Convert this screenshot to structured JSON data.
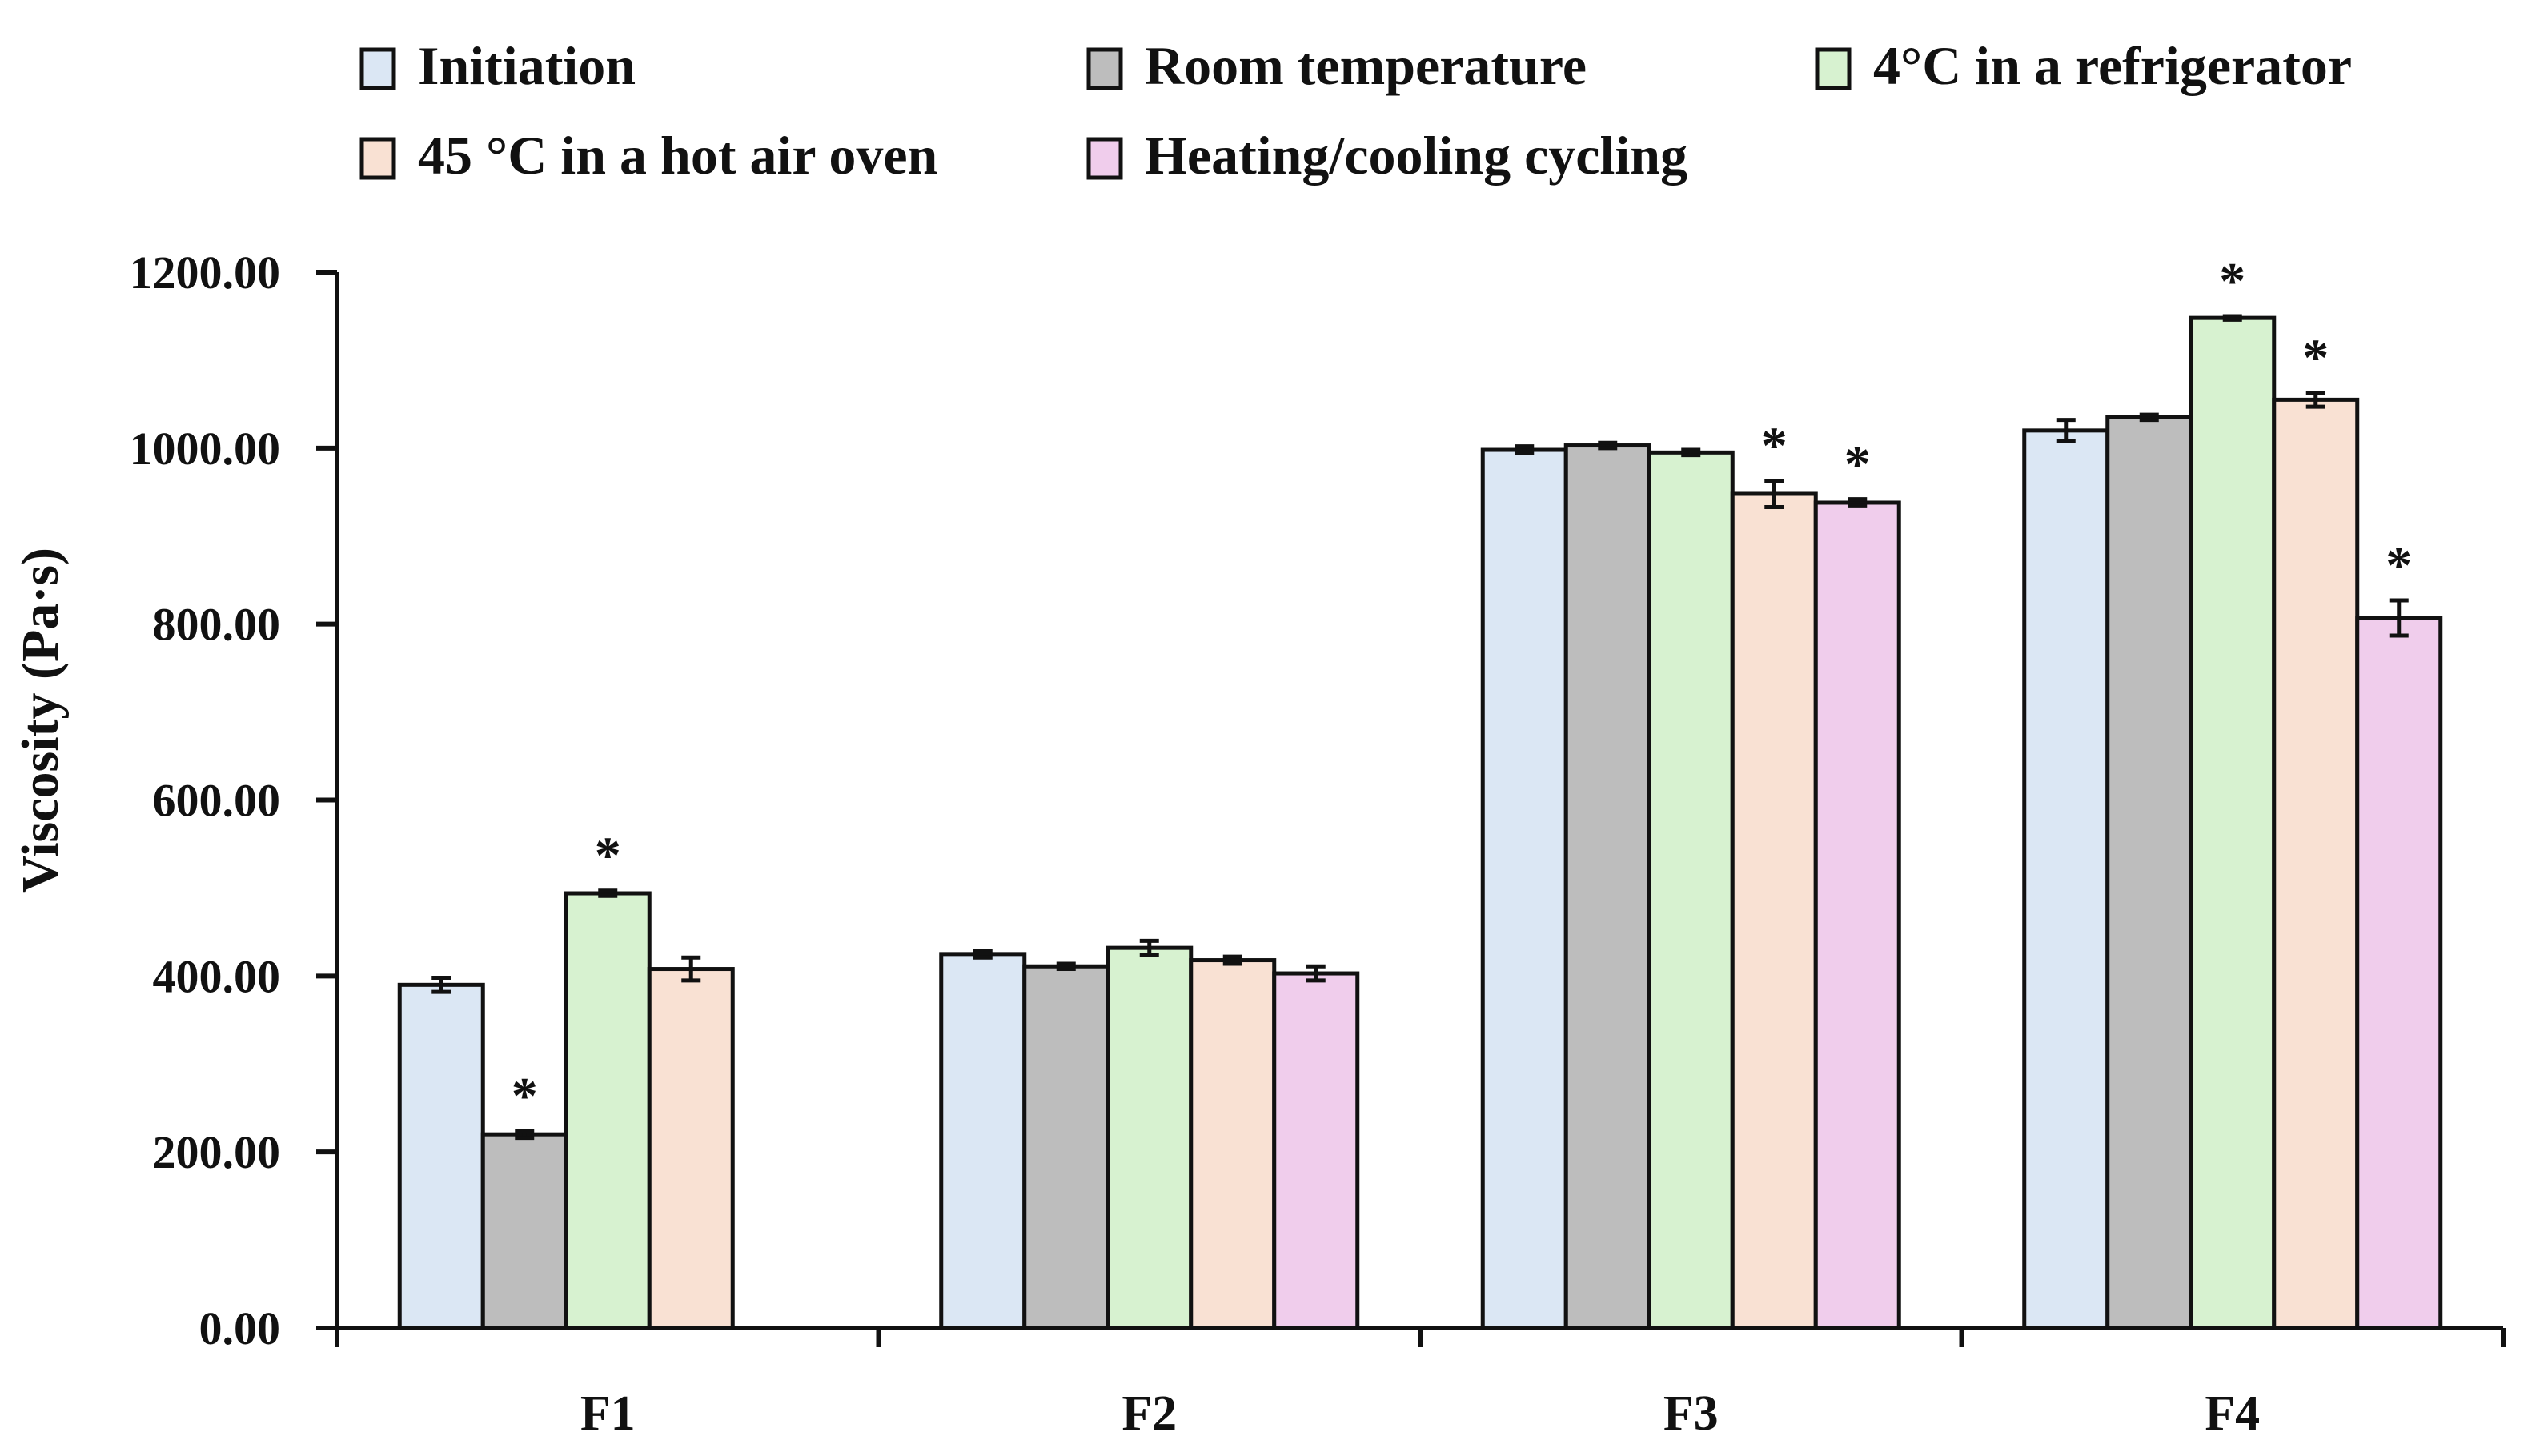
{
  "chart_data": {
    "type": "bar",
    "title": "",
    "xlabel": "",
    "ylabel": "Viscosity (Pa·s)",
    "ylim": [
      0,
      1200
    ],
    "yticks": [
      0,
      200,
      400,
      600,
      800,
      1000,
      1200
    ],
    "ytick_labels": [
      "0.00",
      "200.00",
      "400.00",
      "600.00",
      "800.00",
      "1000.00",
      "1200.00"
    ],
    "categories": [
      "F1",
      "F2",
      "F3",
      "F4"
    ],
    "legend_position": "top",
    "significance_marker": "*",
    "series": [
      {
        "name": "Initiation",
        "color": "#dbe7f4",
        "values": [
          390,
          425,
          998,
          1020
        ],
        "errors": [
          8,
          4,
          4,
          12
        ],
        "significant": [
          false,
          false,
          false,
          false
        ]
      },
      {
        "name": "Room temperature",
        "color": "#bdbdbd",
        "values": [
          220,
          411,
          1003,
          1035
        ],
        "errors": [
          4,
          3,
          3,
          3
        ],
        "significant": [
          true,
          false,
          false,
          false
        ]
      },
      {
        "name": "4°C in a refrigerator",
        "color": "#d7f2d0",
        "values": [
          494,
          432,
          995,
          1148
        ],
        "errors": [
          3,
          8,
          3,
          2
        ],
        "significant": [
          true,
          false,
          false,
          true
        ]
      },
      {
        "name": "45 °C in a hot air oven",
        "color": "#f9e1d3",
        "values": [
          408,
          418,
          948,
          1055
        ],
        "errors": [
          13,
          4,
          15,
          8
        ],
        "significant": [
          false,
          false,
          true,
          true
        ]
      },
      {
        "name": "Heating/cooling cycling",
        "color": "#f0cdec",
        "values": [
          null,
          403,
          938,
          807
        ],
        "errors": [
          null,
          8,
          4,
          20
        ],
        "significant": [
          false,
          false,
          true,
          true
        ]
      }
    ]
  }
}
